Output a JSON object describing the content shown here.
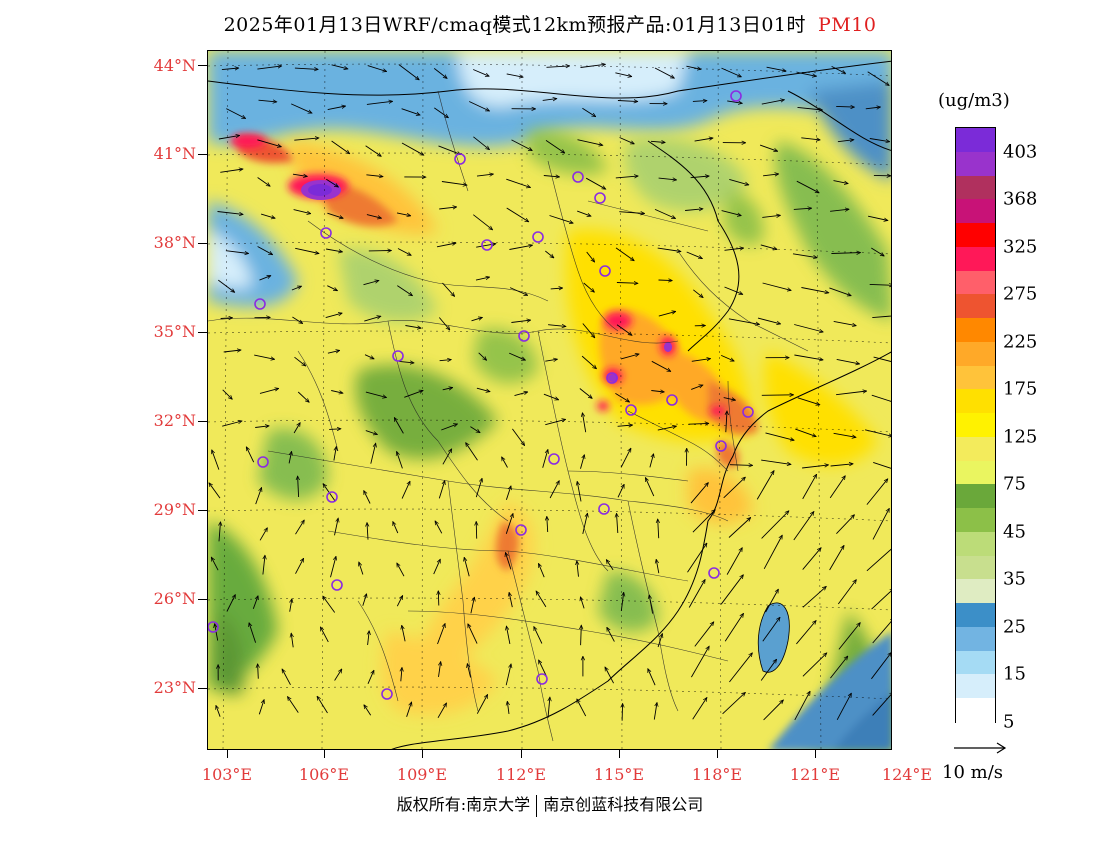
{
  "header": {
    "title": "2025年01月13日WRF/cmaq模式12km预报产品:01月13日01时",
    "species": "PM10"
  },
  "map": {
    "lat_labels": [
      "44°N",
      "41°N",
      "38°N",
      "35°N",
      "32°N",
      "29°N",
      "26°N",
      "23°N"
    ],
    "lon_labels": [
      "103°E",
      "106°E",
      "109°E",
      "112°E",
      "115°E",
      "118°E",
      "121°E",
      "124°E"
    ],
    "lon_range": [
      103,
      124
    ],
    "lat_range": [
      21.2,
      44.6
    ],
    "colors": {
      "base_yellow": "#f0e95a",
      "bright_yellow": "#ffe000",
      "orange": "#ffb040",
      "red": "#ff2a4a",
      "purple": "#9932cc",
      "green": "#5aa53a",
      "light_green": "#a8d070",
      "ocean_blue": "#4d90c6",
      "light_blue": "#b0dff5"
    }
  },
  "legend": {
    "unit": "(ug/m3)",
    "labels": [
      "403",
      "368",
      "325",
      "275",
      "225",
      "175",
      "125",
      "75",
      "45",
      "35",
      "25",
      "15",
      "5"
    ],
    "colors": [
      "#7b2bd8",
      "#9933cc",
      "#b0305e",
      "#c81277",
      "#ff0000",
      "#ff1858",
      "#ff5f6a",
      "#ee5430",
      "#ff8800",
      "#ffa928",
      "#ffc33a",
      "#ffe000",
      "#fff200",
      "#f3eb5c",
      "#eaf560",
      "#6aa83a",
      "#8cc048",
      "#bcdc78",
      "#c8df8e",
      "#dfecc2",
      "#3c8fc8",
      "#72b4e2",
      "#a5dbf4",
      "#d6eefb",
      "#ffffff"
    ]
  },
  "wind_reference": {
    "label": "10 m/s"
  },
  "footer": {
    "rights": "版权所有:南京大学",
    "company": "南京创蓝科技有限公司"
  }
}
